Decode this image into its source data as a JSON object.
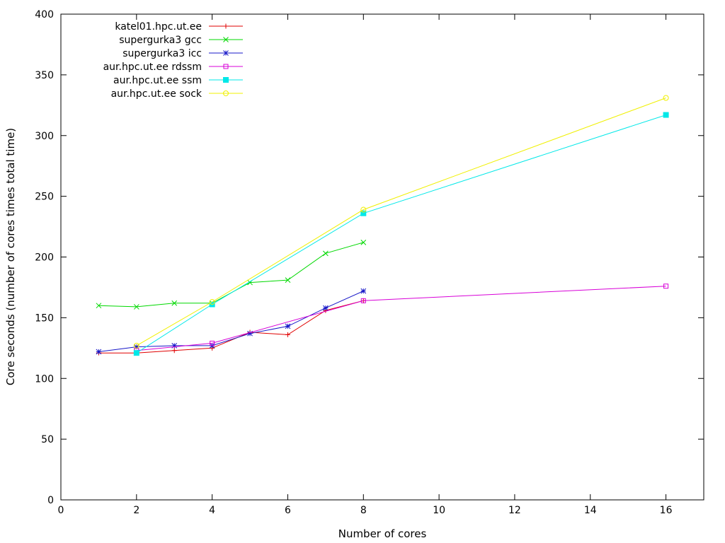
{
  "chart_data": {
    "type": "line",
    "title": "",
    "xlabel": "Number of cores",
    "ylabel": "Core seconds (number of cores times total time)",
    "xlim": [
      0,
      17
    ],
    "ylim": [
      0,
      400
    ],
    "xticks": [
      0,
      2,
      4,
      6,
      8,
      10,
      12,
      14,
      16
    ],
    "yticks": [
      0,
      50,
      100,
      150,
      200,
      250,
      300,
      350,
      400
    ],
    "grid": false,
    "legend_position": "top-left",
    "series": [
      {
        "name": "katel01.hpc.ut.ee",
        "color": "#e00000",
        "marker": "plus",
        "x": [
          1,
          2,
          3,
          4,
          5,
          6,
          7,
          8
        ],
        "y": [
          121,
          121,
          123,
          125,
          138,
          136,
          156,
          164
        ]
      },
      {
        "name": "supergurka3 gcc",
        "color": "#00d800",
        "marker": "cross",
        "x": [
          1,
          2,
          3,
          4,
          5,
          6,
          7,
          8
        ],
        "y": [
          160,
          159,
          162,
          162,
          179,
          181,
          203,
          212
        ]
      },
      {
        "name": "supergurka3 icc",
        "color": "#1818c8",
        "marker": "star",
        "x": [
          1,
          2,
          3,
          4,
          5,
          6,
          7,
          8
        ],
        "y": [
          122,
          126,
          127,
          127,
          137,
          143,
          158,
          172
        ]
      },
      {
        "name": "aur.hpc.ut.ee rdssm",
        "color": "#d800d8",
        "marker": "open-square",
        "x": [
          2,
          4,
          8,
          16
        ],
        "y": [
          123,
          129,
          164,
          176
        ]
      },
      {
        "name": "aur.hpc.ut.ee ssm",
        "color": "#00e8e8",
        "marker": "filled-square",
        "x": [
          2,
          4,
          8,
          16
        ],
        "y": [
          121,
          161,
          236,
          317
        ]
      },
      {
        "name": "aur.hpc.ut.ee sock",
        "color": "#f0f000",
        "marker": "open-circle",
        "x": [
          2,
          4,
          8,
          16
        ],
        "y": [
          127,
          163,
          239,
          331
        ]
      }
    ]
  }
}
